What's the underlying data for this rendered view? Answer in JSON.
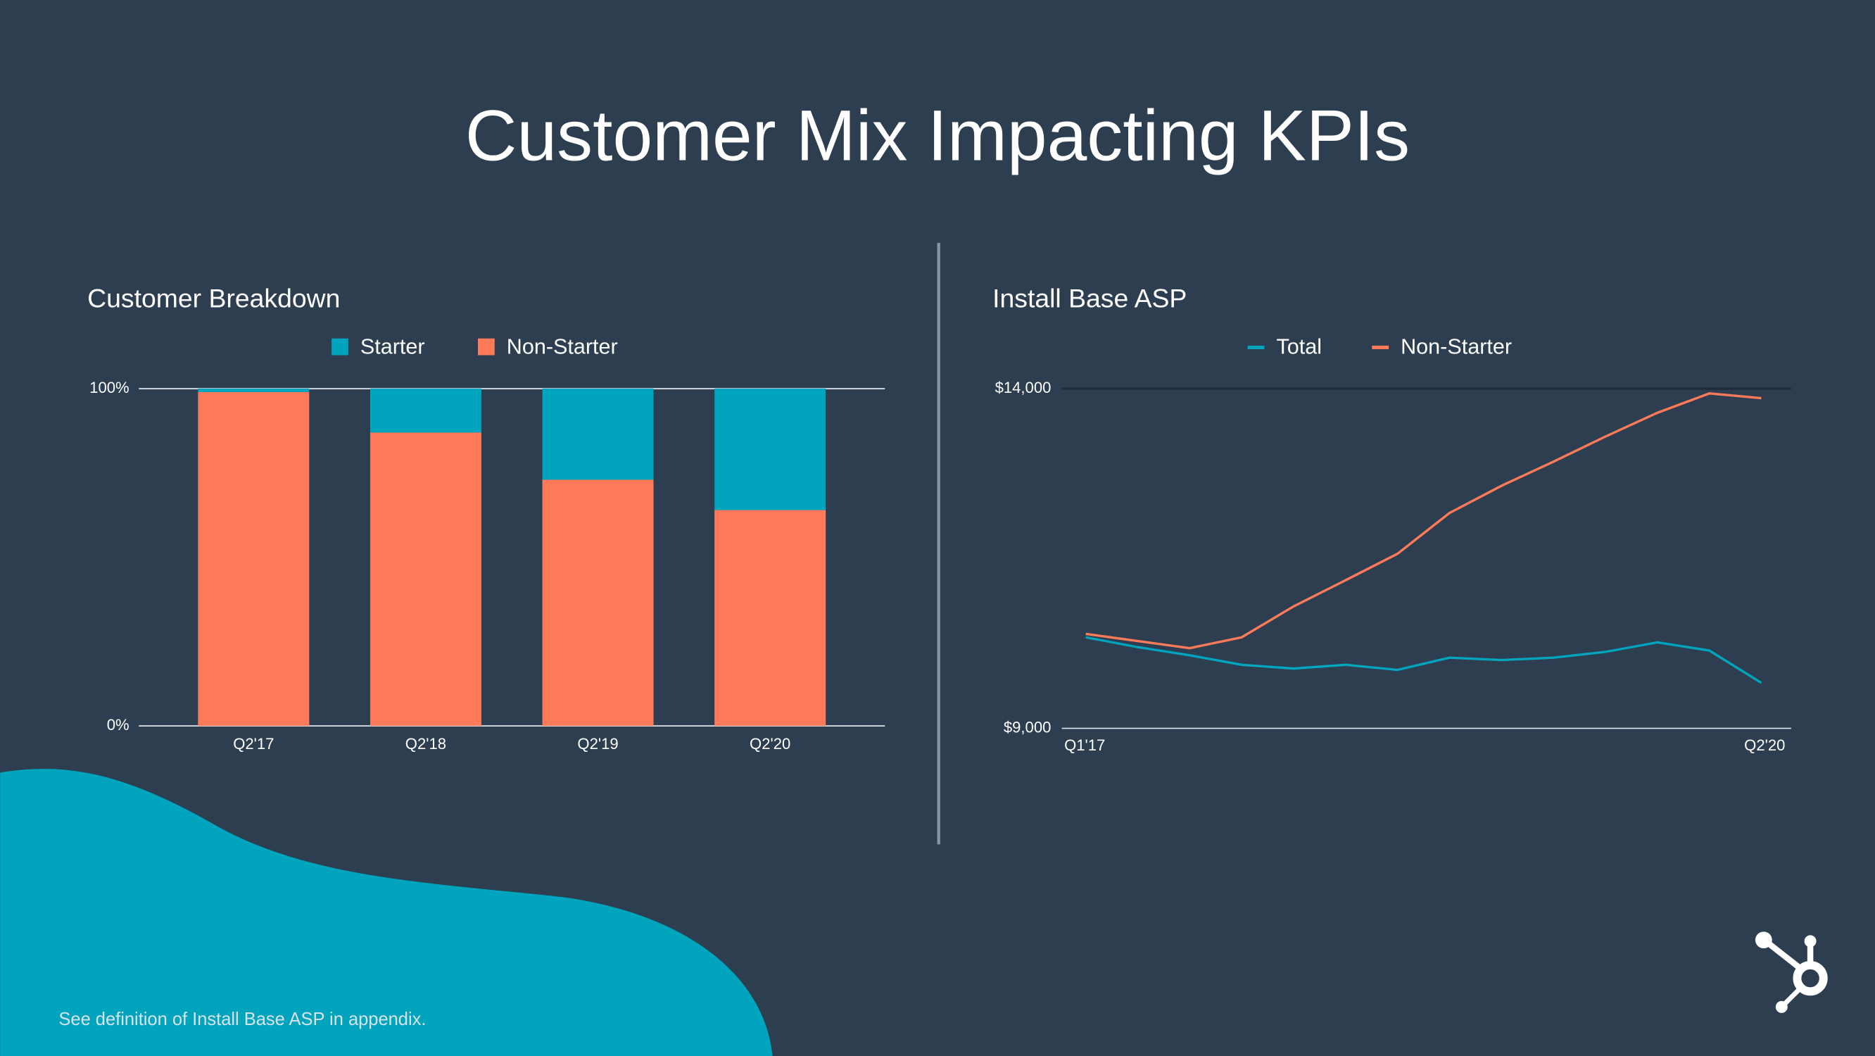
{
  "title": "Customer Mix Impacting KPIs",
  "footnote": "See definition of Install Base ASP in appendix.",
  "chart_data": [
    {
      "type": "stacked-bar",
      "title": "Customer Breakdown",
      "categories": [
        "Q2'17",
        "Q2'18",
        "Q2'19",
        "Q2'20"
      ],
      "series": [
        {
          "name": "Starter",
          "color": "#00a4bd",
          "values": [
            1,
            13,
            27,
            36
          ]
        },
        {
          "name": "Non-Starter",
          "color": "#ff7a59",
          "values": [
            99,
            87,
            73,
            64
          ]
        }
      ],
      "ylim": [
        0,
        100
      ],
      "yticks": [
        {
          "value": 0,
          "label": "0%"
        },
        {
          "value": 100,
          "label": "100%"
        }
      ],
      "grid": true
    },
    {
      "type": "line",
      "title": "Install Base ASP",
      "categories": [
        "Q1'17",
        null,
        null,
        null,
        null,
        null,
        null,
        null,
        null,
        null,
        null,
        null,
        null,
        "Q2'20"
      ],
      "series": [
        {
          "name": "Total",
          "color": "#00a4bd",
          "values": [
            10340,
            10195,
            10075,
            9935,
            9880,
            9935,
            9860,
            10040,
            10005,
            10040,
            10125,
            10265,
            10145,
            9670
          ]
        },
        {
          "name": "Non-Starter",
          "color": "#ff7a59",
          "values": [
            10390,
            10285,
            10180,
            10340,
            10795,
            11180,
            11570,
            12170,
            12570,
            12925,
            13295,
            13645,
            13930,
            13860
          ]
        }
      ],
      "ylim": [
        9000,
        14000
      ],
      "yticks": [
        {
          "value": 9000,
          "label": "$9,000"
        },
        {
          "value": 14000,
          "label": "$14,000"
        }
      ],
      "grid": true
    }
  ]
}
